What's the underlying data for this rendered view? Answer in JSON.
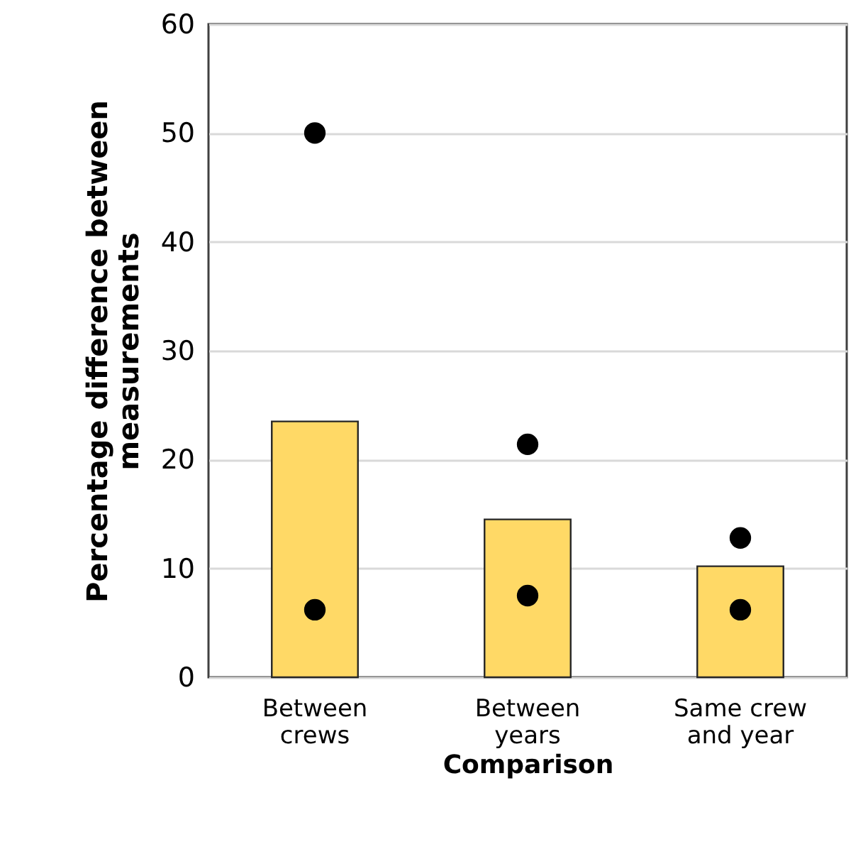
{
  "chart_data": {
    "type": "bar",
    "xlabel": "Comparison",
    "ylabel": "Percentage difference between\nmeasurements",
    "categories": [
      "Between\ncrews",
      "Between\nyears",
      "Same crew\nand year"
    ],
    "series": [
      {
        "type": "bar",
        "color": "#ffd966",
        "values": [
          23.5,
          14.5,
          10.2
        ]
      },
      {
        "type": "scatter",
        "color": "#000000",
        "x": [
          "Between\ncrews",
          "Between\nyears",
          "Same crew\nand year"
        ],
        "values": [
          50,
          21.4,
          12.8
        ]
      },
      {
        "type": "scatter",
        "color": "#000000",
        "x": [
          "Between\ncrews",
          "Between\nyears",
          "Same crew\nand year"
        ],
        "values": [
          6.2,
          7.5,
          6.2
        ]
      }
    ],
    "ylim": [
      0,
      60
    ],
    "yticks": [
      0,
      10,
      20,
      30,
      40,
      50,
      60
    ],
    "grid": "y",
    "marker": "circle"
  }
}
